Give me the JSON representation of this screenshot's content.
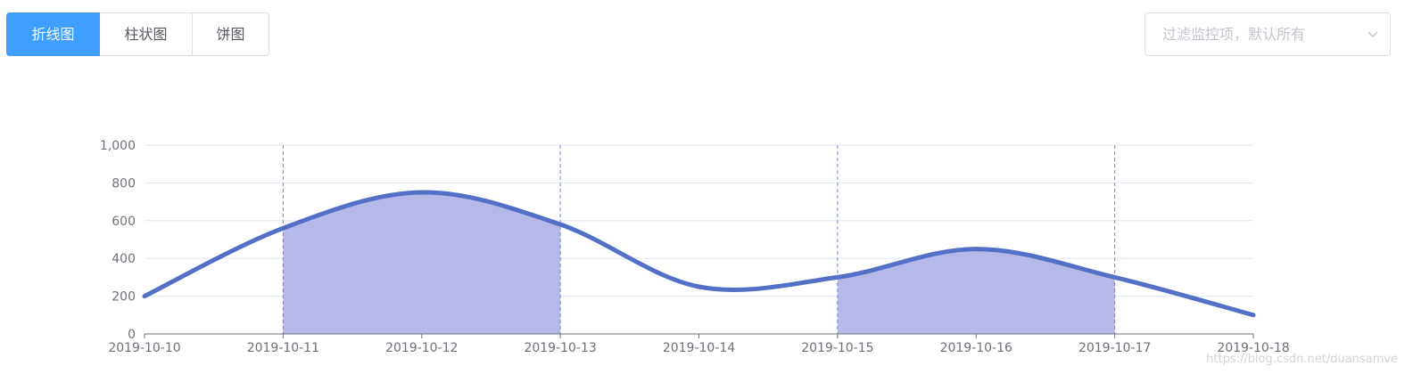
{
  "tabs": [
    {
      "label": "折线图",
      "active": true
    },
    {
      "label": "柱状图",
      "active": false
    },
    {
      "label": "饼图",
      "active": false
    }
  ],
  "filter": {
    "placeholder": "过滤监控项，默认所有"
  },
  "icons": {
    "filter_dropdown": "chevron-down-icon"
  },
  "colors": {
    "active_tab": "#409eff",
    "line": "#5470c6",
    "area": "#b6b8e9",
    "marker_line": "#6f88d8",
    "grid": "#e0e6f1",
    "axis": "#6e7079"
  },
  "chart_data": {
    "type": "line",
    "x": [
      "2019-10-10",
      "2019-10-11",
      "2019-10-12",
      "2019-10-13",
      "2019-10-14",
      "2019-10-15",
      "2019-10-16",
      "2019-10-17",
      "2019-10-18"
    ],
    "values": [
      200,
      560,
      750,
      580,
      250,
      300,
      450,
      300,
      100
    ],
    "smooth": true,
    "y_ticks": [
      "0",
      "200",
      "400",
      "600",
      "800",
      "1,000"
    ],
    "ylim": [
      0,
      1000
    ],
    "grid": "horizontal",
    "mark_areas": [
      {
        "from": "2019-10-11",
        "to": "2019-10-13"
      },
      {
        "from": "2019-10-15",
        "to": "2019-10-17"
      }
    ],
    "xlabel": "",
    "ylabel": ""
  },
  "watermark": "https://blog.csdn.net/duansamve"
}
